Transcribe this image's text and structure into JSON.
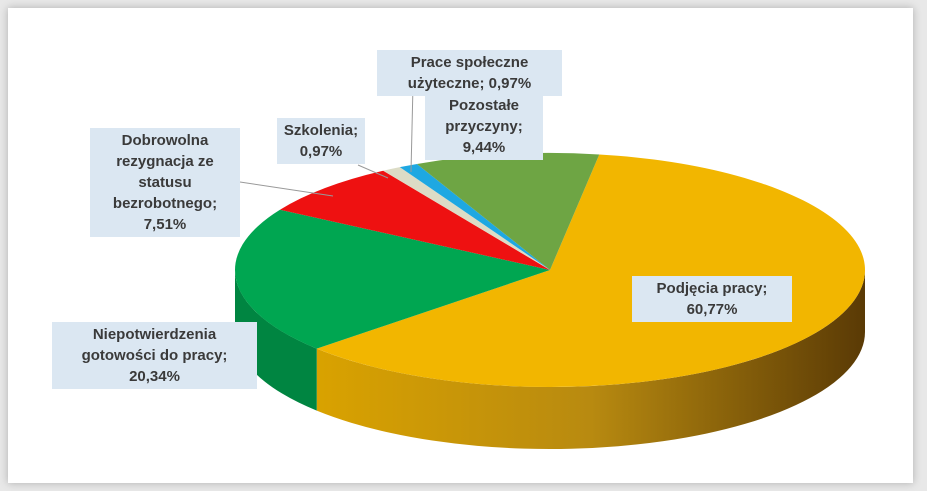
{
  "chart_data": {
    "type": "pie",
    "categories": [
      "Podjęcia pracy;",
      "Niepotwierdzenia gotowości do pracy;",
      "Dobrowolna rezygnacja ze statusu bezrobotnego;",
      "Szkolenia;",
      "Prace społeczne użyteczne;",
      "Pozostałe przyczyny;"
    ],
    "values": [
      60.77,
      20.34,
      7.51,
      0.97,
      0.97,
      9.44
    ],
    "value_labels": [
      "60,77%",
      "20,34%",
      "7,51%",
      "0,97%",
      "0,97%",
      "9,44%"
    ],
    "colors": [
      "#f2b600",
      "#00a651",
      "#ee1111",
      "#dcdcc6",
      "#1ea8e2",
      "#6ea544"
    ]
  }
}
